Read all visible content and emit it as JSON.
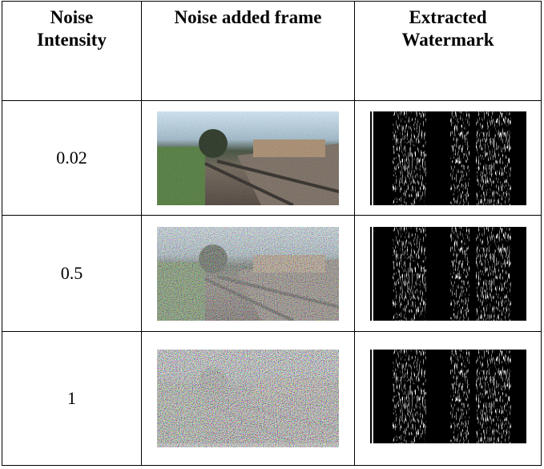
{
  "table": {
    "header": [
      "Noise Intensity",
      "Noise added frame",
      "Extracted Watermark"
    ],
    "rows": [
      [
        0.02
      ],
      [
        0.5
      ],
      [
        1
      ]
    ]
  }
}
